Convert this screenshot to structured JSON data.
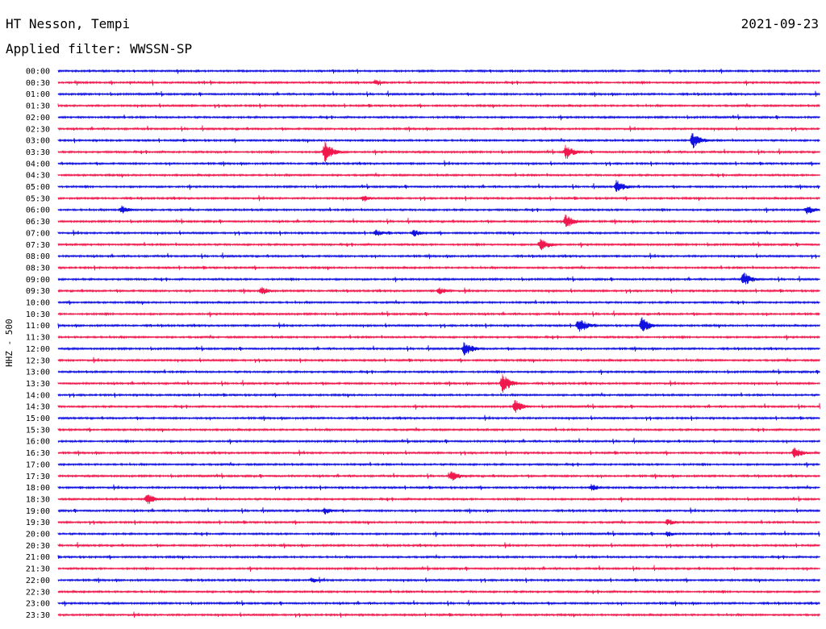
{
  "header": {
    "station": "HT Nesson, Tempi",
    "date": "2021-09-23",
    "filter": "Applied filter: WWSSN-SP"
  },
  "channel_label": "HHZ - 500",
  "colors": {
    "blue": "#1010e0",
    "red": "#f0184c"
  },
  "chart_data": {
    "type": "line",
    "title": "HT Nesson, Tempi",
    "subtitle": "Applied filter: WWSSN-SP",
    "ylabel": "HHZ - 500",
    "ytick_labels": [
      "00:00",
      "00:30",
      "01:00",
      "01:30",
      "02:00",
      "02:30",
      "03:00",
      "03:30",
      "04:00",
      "04:30",
      "05:00",
      "05:30",
      "06:00",
      "06:30",
      "07:00",
      "07:30",
      "08:00",
      "08:30",
      "09:00",
      "09:30",
      "10:00",
      "10:30",
      "11:00",
      "11:30",
      "12:00",
      "12:30",
      "13:00",
      "13:30",
      "14:00",
      "14:30",
      "15:00",
      "15:30",
      "16:00",
      "16:30",
      "17:00",
      "17:30",
      "18:00",
      "18:30",
      "19:00",
      "19:30",
      "20:00",
      "20:30",
      "21:00",
      "21:30",
      "22:00",
      "22:30",
      "23:00",
      "23:30"
    ],
    "trace_colors": "alternating blue (:00) / red (:30)",
    "events": [
      {
        "trace": "00:30",
        "minute": 12.5,
        "amp": 4
      },
      {
        "trace": "03:00",
        "minute": 25.0,
        "amp": 11
      },
      {
        "trace": "03:30",
        "minute": 10.5,
        "amp": 14
      },
      {
        "trace": "03:30",
        "minute": 20.0,
        "amp": 10
      },
      {
        "trace": "05:00",
        "minute": 22.0,
        "amp": 9
      },
      {
        "trace": "05:30",
        "minute": 12.0,
        "amp": 5
      },
      {
        "trace": "06:00",
        "minute": 2.5,
        "amp": 6
      },
      {
        "trace": "06:00",
        "minute": 29.5,
        "amp": 6
      },
      {
        "trace": "06:30",
        "minute": 20.0,
        "amp": 10
      },
      {
        "trace": "07:00",
        "minute": 12.5,
        "amp": 5
      },
      {
        "trace": "07:00",
        "minute": 14.0,
        "amp": 5
      },
      {
        "trace": "07:30",
        "minute": 19.0,
        "amp": 9
      },
      {
        "trace": "09:00",
        "minute": 27.0,
        "amp": 10
      },
      {
        "trace": "09:30",
        "minute": 8.0,
        "amp": 6
      },
      {
        "trace": "09:30",
        "minute": 15.0,
        "amp": 5
      },
      {
        "trace": "11:00",
        "minute": 20.5,
        "amp": 11
      },
      {
        "trace": "11:00",
        "minute": 23.0,
        "amp": 11
      },
      {
        "trace": "12:00",
        "minute": 16.0,
        "amp": 10
      },
      {
        "trace": "13:30",
        "minute": 17.5,
        "amp": 13
      },
      {
        "trace": "14:30",
        "minute": 18.0,
        "amp": 9
      },
      {
        "trace": "16:30",
        "minute": 29.0,
        "amp": 8
      },
      {
        "trace": "17:30",
        "minute": 15.5,
        "amp": 7
      },
      {
        "trace": "18:00",
        "minute": 21.0,
        "amp": 5
      },
      {
        "trace": "18:30",
        "minute": 3.5,
        "amp": 8
      },
      {
        "trace": "19:00",
        "minute": 10.5,
        "amp": 5
      },
      {
        "trace": "19:30",
        "minute": 24.0,
        "amp": 5
      },
      {
        "trace": "20:00",
        "minute": 24.0,
        "amp": 4
      },
      {
        "trace": "22:00",
        "minute": 10.0,
        "amp": 4
      }
    ]
  }
}
